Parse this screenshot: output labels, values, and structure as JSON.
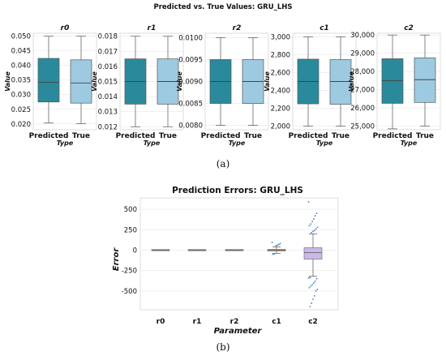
{
  "top_figure": {
    "suptitle": "Predicted vs. True Values: GRU_LHS",
    "caption": "(a)",
    "ylabel": "Value",
    "xlabel": "Type",
    "categories": [
      "Predicted",
      "True"
    ],
    "colors": {
      "predicted": "#2a8a9c",
      "true": "#9ecae1"
    },
    "panels": [
      {
        "title": "r0",
        "ylim": [
          0.018,
          0.051
        ],
        "ticks": [
          0.02,
          0.025,
          0.03,
          0.035,
          0.04,
          0.045,
          0.05
        ],
        "ticklabels": [
          "0.020",
          "0.025",
          "0.030",
          "0.035",
          "0.040",
          "0.045",
          "0.050"
        ],
        "boxes": [
          {
            "min": 0.0203,
            "q1": 0.0275,
            "median": 0.0342,
            "q3": 0.0424,
            "max": 0.05
          },
          {
            "min": 0.0201,
            "q1": 0.0271,
            "median": 0.034,
            "q3": 0.0419,
            "max": 0.05
          }
        ]
      },
      {
        "title": "r1",
        "ylim": [
          0.0118,
          0.0182
        ],
        "ticks": [
          0.012,
          0.013,
          0.014,
          0.015,
          0.016,
          0.017,
          0.018
        ],
        "ticklabels": [
          "0.012",
          "0.013",
          "0.014",
          "0.015",
          "0.016",
          "0.017",
          "0.018"
        ],
        "boxes": [
          {
            "min": 0.012,
            "q1": 0.0135,
            "median": 0.015,
            "q3": 0.0165,
            "max": 0.018
          },
          {
            "min": 0.012,
            "q1": 0.0135,
            "median": 0.015,
            "q3": 0.0165,
            "max": 0.018
          }
        ]
      },
      {
        "title": "r2",
        "ylim": [
          0.0079,
          0.0101
        ],
        "ticks": [
          0.008,
          0.0085,
          0.009,
          0.0095,
          0.01
        ],
        "ticklabels": [
          "0.0080",
          "0.0085",
          "0.0090",
          "0.0095",
          "0.0100"
        ],
        "boxes": [
          {
            "min": 0.008,
            "q1": 0.0085,
            "median": 0.009,
            "q3": 0.0095,
            "max": 0.01
          },
          {
            "min": 0.008,
            "q1": 0.0085,
            "median": 0.009,
            "q3": 0.0095,
            "max": 0.01
          }
        ]
      },
      {
        "title": "c1",
        "ylim": [
          1960,
          3040
        ],
        "ticks": [
          2000,
          2200,
          2400,
          2600,
          2800,
          3000
        ],
        "ticklabels": [
          "2,000",
          "2,200",
          "2,400",
          "2,600",
          "2,800",
          "3,000"
        ],
        "boxes": [
          {
            "min": 2000,
            "q1": 2250,
            "median": 2500,
            "q3": 2750,
            "max": 3000
          },
          {
            "min": 2000,
            "q1": 2245,
            "median": 2500,
            "q3": 2745,
            "max": 3000
          }
        ]
      },
      {
        "title": "c2",
        "ylim": [
          24800,
          30100
        ],
        "ticks": [
          25000,
          26000,
          27000,
          28000,
          29000,
          30000
        ],
        "ticklabels": [
          "25,000",
          "26,000",
          "27,000",
          "28,000",
          "29,000",
          "30,000"
        ],
        "boxes": [
          {
            "min": 24850,
            "q1": 26250,
            "median": 27500,
            "q3": 28700,
            "max": 30000
          },
          {
            "min": 25000,
            "q1": 26300,
            "median": 27550,
            "q3": 28750,
            "max": 30000
          }
        ]
      }
    ]
  },
  "chart_data": {
    "type": "box",
    "title": "Prediction Errors: GRU_LHS",
    "caption": "(b)",
    "xlabel": "Parameter",
    "ylabel": "Error",
    "categories": [
      "r0",
      "r1",
      "r2",
      "c1",
      "c2"
    ],
    "ylim": [
      -730,
      640
    ],
    "yticks": [
      -500,
      -250,
      0,
      250,
      500
    ],
    "box_colors": [
      "#a6cee3",
      "#a6cee3",
      "#a6cee3",
      "#f4a582",
      "#cbb8e8"
    ],
    "boxes": [
      {
        "q1": 0,
        "median": 0,
        "q3": 0,
        "min": 0,
        "max": 0
      },
      {
        "q1": 0,
        "median": 0,
        "q3": 0,
        "min": 0,
        "max": 0
      },
      {
        "q1": 0,
        "median": 0,
        "q3": 0,
        "min": 0,
        "max": 0
      },
      {
        "q1": -10,
        "median": 0,
        "q3": 10,
        "min": -40,
        "max": 40
      },
      {
        "q1": -110,
        "median": -30,
        "q3": 30,
        "min": -320,
        "max": 200
      }
    ],
    "outliers": {
      "c1": [
        95,
        80,
        70,
        60,
        55,
        -45,
        -50
      ],
      "c2": [
        590,
        450,
        420,
        380,
        350,
        320,
        300,
        280,
        260,
        240,
        230,
        215,
        -335,
        -340,
        -350,
        -380,
        -400,
        -420,
        -440,
        -460,
        -480,
        -500,
        -560,
        -600,
        -650,
        -690
      ]
    }
  }
}
